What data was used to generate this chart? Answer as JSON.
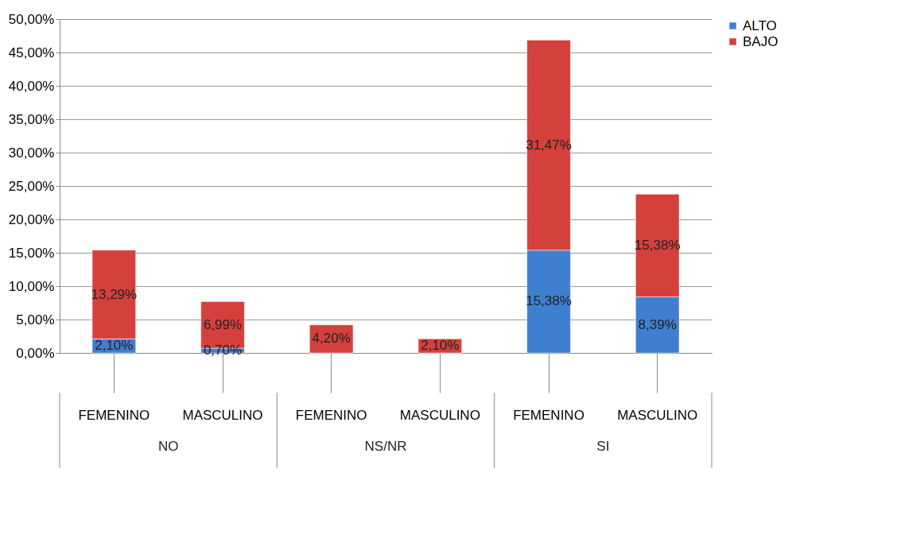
{
  "chart_data": {
    "type": "bar",
    "stacked": true,
    "categories": [
      "FEMENINO",
      "MASCULINO",
      "FEMENINO",
      "MASCULINO",
      "FEMENINO",
      "MASCULINO"
    ],
    "series": [
      {
        "name": "ALTO",
        "color": "#3f7fcf",
        "values": [
          2.1,
          0.7,
          0,
          0,
          15.38,
          8.39
        ],
        "value_labels": [
          "2,10%",
          "0,70%",
          null,
          null,
          "15,38%",
          "8,39%"
        ]
      },
      {
        "name": "BAJO",
        "color": "#d4403c",
        "values": [
          13.29,
          6.99,
          4.2,
          2.1,
          31.47,
          15.38
        ],
        "value_labels": [
          "13,29%",
          "6,99%",
          "4,20%",
          "2,10%",
          "31,47%",
          "15,38%"
        ]
      }
    ],
    "annotations": [
      "NO",
      "NS/NR",
      "SI"
    ],
    "ylim": [
      0,
      50
    ],
    "yticks": [
      {
        "value": 0,
        "label": "0,00%"
      },
      {
        "value": 5,
        "label": "5,00%"
      },
      {
        "value": 10,
        "label": "10,00%"
      },
      {
        "value": 15,
        "label": "15,00%"
      },
      {
        "value": 20,
        "label": "20,00%"
      },
      {
        "value": 25,
        "label": "25,00%"
      },
      {
        "value": 30,
        "label": "30,00%"
      },
      {
        "value": 35,
        "label": "35,00%"
      },
      {
        "value": 40,
        "label": "40,00%"
      },
      {
        "value": 45,
        "label": "45,00%"
      },
      {
        "value": 50,
        "label": "50,00%"
      }
    ],
    "grid": "y",
    "legend": "right"
  }
}
